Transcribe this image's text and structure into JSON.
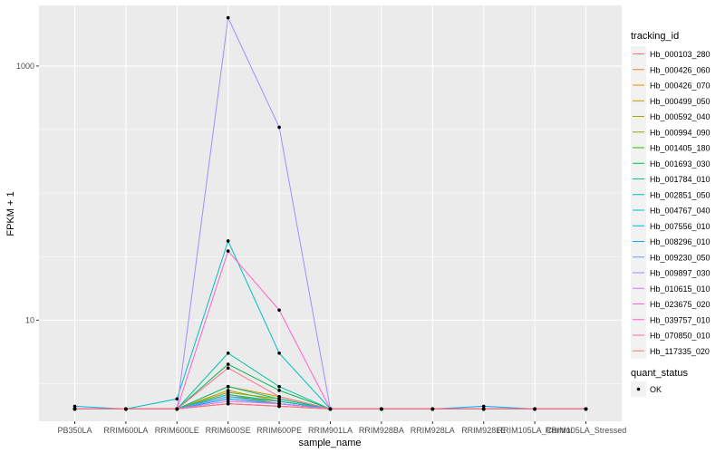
{
  "chart_data": {
    "type": "line",
    "y_scale": "log10",
    "xlabel": "sample_name",
    "ylabel": "FPKM + 1",
    "ylim": [
      1.6,
      3000
    ],
    "y_ticks": [
      {
        "value": 10,
        "label": "10"
      },
      {
        "value": 1000,
        "label": "1000"
      }
    ],
    "categories": [
      "PB350LA",
      "RRIM600LA",
      "RRIM600LE",
      "RRIM600SE",
      "RRIM600PE",
      "RRIM901LA",
      "RRIM928BA",
      "RRIM928LA",
      "RRIM928LE",
      "RRIM105LA_Control",
      "RRIM105LA_Stressed"
    ],
    "grid": true,
    "legend": {
      "position": "right",
      "title": "tracking_id",
      "shape_title": "quant_status",
      "shape_items": [
        "OK"
      ]
    },
    "series": [
      {
        "name": "Hb_000103_280",
        "color": "#F8766D",
        "values": [
          2,
          2,
          2,
          2.2,
          2.1,
          2,
          2,
          2,
          2,
          2,
          2
        ]
      },
      {
        "name": "Hb_000426_060",
        "color": "#EA8331",
        "values": [
          2,
          2,
          2,
          2.4,
          2.2,
          2,
          2,
          2,
          2,
          2,
          2
        ]
      },
      {
        "name": "Hb_000426_070",
        "color": "#D89000",
        "values": [
          2,
          2,
          2,
          3,
          2.5,
          2,
          2,
          2,
          2,
          2,
          2
        ]
      },
      {
        "name": "Hb_000499_050",
        "color": "#C09B00",
        "values": [
          2,
          2,
          2,
          2.8,
          2.3,
          2,
          2,
          2,
          2,
          2,
          2
        ]
      },
      {
        "name": "Hb_000592_040",
        "color": "#A3A500",
        "values": [
          2,
          2,
          2,
          2.6,
          2.2,
          2,
          2,
          2,
          2,
          2,
          2
        ]
      },
      {
        "name": "Hb_000994_090",
        "color": "#7CAE00",
        "values": [
          2,
          2,
          2,
          2.7,
          2.4,
          2,
          2,
          2,
          2,
          2,
          2
        ]
      },
      {
        "name": "Hb_001405_180",
        "color": "#39B600",
        "values": [
          2,
          2,
          2,
          2.5,
          2.3,
          2,
          2,
          2,
          2,
          2,
          2
        ]
      },
      {
        "name": "Hb_001693_030",
        "color": "#00BB4E",
        "values": [
          2,
          2,
          2,
          4.5,
          2.8,
          2,
          2,
          2,
          2,
          2,
          2
        ]
      },
      {
        "name": "Hb_001784_010",
        "color": "#00BF7D",
        "values": [
          2,
          2,
          2,
          3,
          2.4,
          2,
          2,
          2,
          2,
          2,
          2
        ]
      },
      {
        "name": "Hb_002851_050",
        "color": "#00C1A3",
        "values": [
          2,
          2,
          2,
          5.5,
          3,
          2,
          2,
          2,
          2,
          2,
          2
        ]
      },
      {
        "name": "Hb_004767_040",
        "color": "#00BFC4",
        "values": [
          2,
          2,
          2.4,
          42,
          5.5,
          2,
          2,
          2,
          2,
          2,
          2
        ]
      },
      {
        "name": "Hb_007556_010",
        "color": "#00B8E5",
        "values": [
          2.1,
          2,
          2,
          2.6,
          2.3,
          2,
          2,
          2,
          2,
          2,
          2
        ]
      },
      {
        "name": "Hb_008296_010",
        "color": "#00ABFD",
        "values": [
          2,
          2,
          2,
          2.4,
          2.2,
          2,
          2,
          2,
          2.1,
          2,
          2
        ]
      },
      {
        "name": "Hb_009230_050",
        "color": "#619CFF",
        "values": [
          2,
          2,
          2,
          2.5,
          2.2,
          2,
          2,
          2,
          2,
          2,
          2
        ]
      },
      {
        "name": "Hb_009897_030",
        "color": "#A58AFF",
        "values": [
          2,
          2,
          2,
          2400,
          330,
          2,
          2,
          2,
          2,
          2,
          2
        ]
      },
      {
        "name": "Hb_010615_010",
        "color": "#DB72FB",
        "values": [
          2,
          2,
          2,
          2.3,
          2.2,
          2,
          2,
          2,
          2,
          2,
          2
        ]
      },
      {
        "name": "Hb_023675_020",
        "color": "#F564E3",
        "values": [
          2,
          2,
          2,
          2.2,
          2.1,
          2,
          2,
          2,
          2,
          2,
          2
        ]
      },
      {
        "name": "Hb_039757_010",
        "color": "#FF61C9",
        "values": [
          2,
          2,
          2,
          35,
          12,
          2,
          2,
          2,
          2,
          2,
          2
        ]
      },
      {
        "name": "Hb_070850_010",
        "color": "#FF6C91",
        "values": [
          2,
          2,
          2,
          4.2,
          2.5,
          2,
          2,
          2,
          2,
          2,
          2
        ]
      },
      {
        "name": "Hb_117335_020",
        "color": "#F8766D",
        "values": [
          2,
          2,
          2,
          2.2,
          2.1,
          2,
          2,
          2,
          2,
          2,
          2
        ]
      }
    ]
  }
}
